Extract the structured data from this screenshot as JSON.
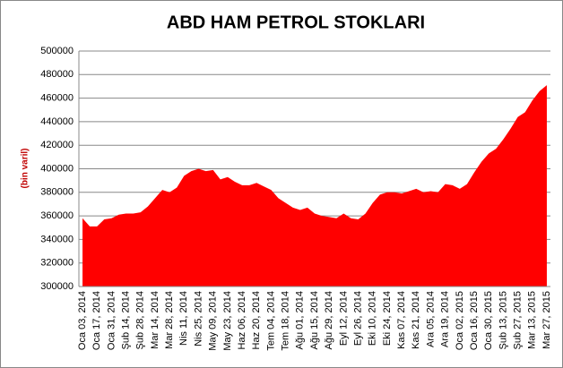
{
  "chart_data": {
    "type": "area",
    "title": "ABD HAM PETROL STOKLARI",
    "y_label": "(bin varil)",
    "categories": [
      "Oca 03, 2014",
      null,
      "Oca 17, 2014",
      null,
      "Oca 31, 2014",
      null,
      "Şub 14, 2014",
      null,
      "Şub 28, 2014",
      null,
      "Mar 14, 2014",
      null,
      "Mar 28, 2014",
      null,
      "Nis 11, 2014",
      null,
      "Nis 25, 2014",
      null,
      "May 09, 2014",
      null,
      "May 23, 2014",
      null,
      "Haz 06, 2014",
      null,
      "Haz 20, 2014",
      null,
      "Tem 04, 2014",
      null,
      "Tem 18, 2014",
      null,
      "Ağu 01, 2014",
      null,
      "Ağu 15, 2014",
      null,
      "Ağu 29, 2014",
      null,
      "Eyl 12, 2014",
      null,
      "Eyl 26, 2014",
      null,
      "Eki 10, 2014",
      null,
      "Eki 24, 2014",
      null,
      "Kas 07, 2014",
      null,
      "Kas 21, 2014",
      null,
      "Ara 05, 2014",
      null,
      "Ara 19, 2014",
      null,
      "Oca 02, 2015",
      null,
      "Oca 16, 2015",
      null,
      "Oca 30, 2015",
      null,
      "Şub 13, 2015",
      null,
      "Şub 27, 2015",
      null,
      "Mar 13, 2015",
      null,
      "Mar 27, 2015"
    ],
    "values": [
      358000,
      351000,
      351000,
      357000,
      358000,
      361000,
      362000,
      362000,
      363000,
      368000,
      375000,
      382000,
      380000,
      384000,
      394000,
      398000,
      400000,
      398000,
      399000,
      391000,
      393000,
      389000,
      386000,
      386000,
      388000,
      385000,
      382000,
      375000,
      371000,
      367000,
      365000,
      367000,
      362000,
      360000,
      359000,
      358000,
      362000,
      358000,
      357000,
      362000,
      371000,
      378000,
      380000,
      380000,
      379000,
      381000,
      383000,
      380000,
      381000,
      380000,
      387000,
      386000,
      383000,
      387000,
      397000,
      406000,
      413000,
      417000,
      425000,
      434000,
      444000,
      448000,
      458000,
      466000,
      471000
    ],
    "color": "#ff0000",
    "ylim": [
      300000,
      500000
    ],
    "yticks": [
      300000,
      320000,
      340000,
      360000,
      380000,
      400000,
      420000,
      440000,
      460000,
      480000,
      500000
    ],
    "grid": true
  }
}
